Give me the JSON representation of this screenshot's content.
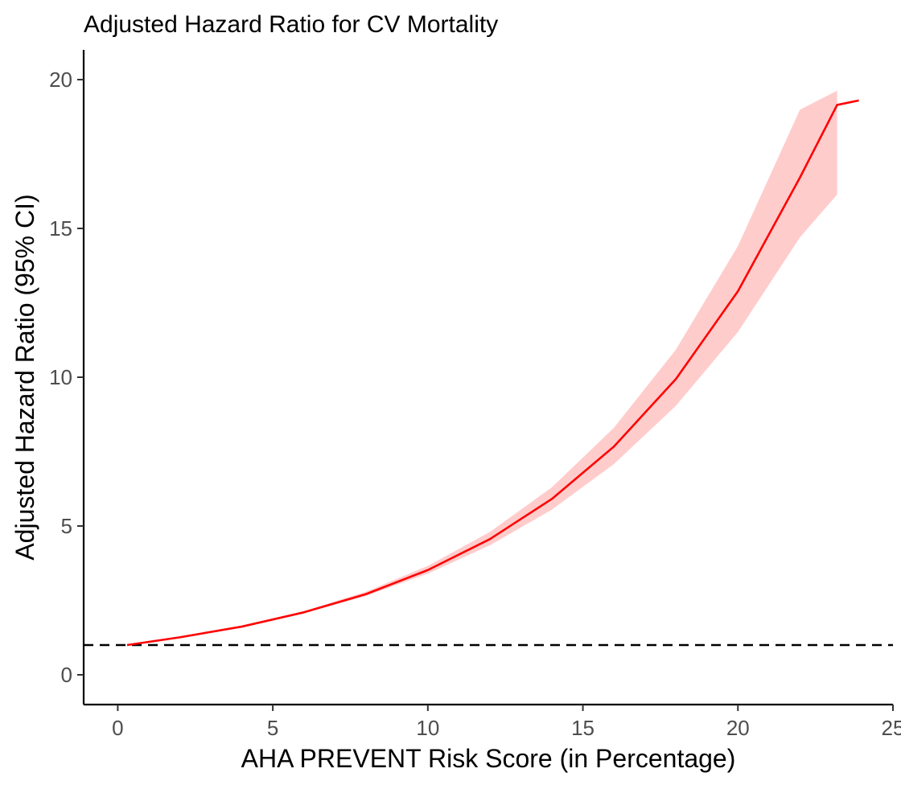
{
  "chart_data": {
    "type": "line",
    "title": "Adjusted Hazard Ratio for CV Mortality",
    "xlabel": "AHA PREVENT Risk Score (in Percentage)",
    "ylabel": "Adjusted Hazard Ratio (95% CI)",
    "xlim": [
      -1.1,
      25
    ],
    "ylim": [
      -1,
      21
    ],
    "x_ticks": [
      0,
      5,
      10,
      15,
      20,
      25
    ],
    "y_ticks": [
      0,
      5,
      10,
      15,
      20
    ],
    "grid": false,
    "legend": "none",
    "reference_line": {
      "y": 1,
      "style": "dashed",
      "color": "#000000"
    },
    "line_color": "#ff0000",
    "band_color": "#ffcccc",
    "series": [
      {
        "x": [
          0.3,
          2,
          4,
          6,
          8,
          10,
          12,
          14,
          16,
          18,
          20,
          22,
          23.2,
          23.9
        ],
        "y": [
          1.0,
          1.26,
          1.62,
          2.1,
          2.71,
          3.52,
          4.56,
          5.91,
          7.67,
          9.94,
          12.89,
          16.71,
          19.15,
          19.3
        ],
        "lower": [
          1.0,
          1.25,
          1.6,
          2.06,
          2.65,
          3.4,
          4.35,
          5.55,
          7.08,
          9.04,
          11.52,
          14.7,
          16.14,
          null
        ],
        "upper": [
          1.0,
          1.27,
          1.64,
          2.14,
          2.79,
          3.66,
          4.8,
          6.3,
          8.3,
          10.93,
          14.41,
          18.99,
          19.63,
          null
        ]
      }
    ]
  }
}
